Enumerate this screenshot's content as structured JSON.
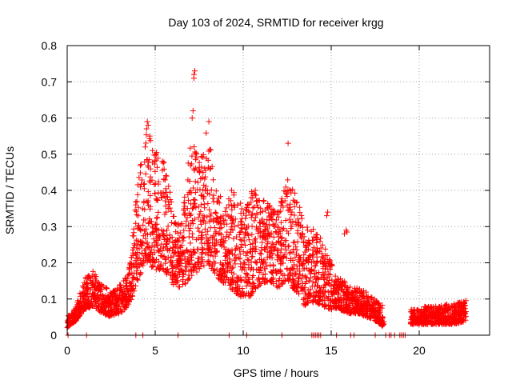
{
  "chart_data": {
    "type": "scatter",
    "title": "Day 103 of 2024, SRMTID for receiver krgg",
    "xlabel": "GPS time / hours",
    "ylabel": "SRMTID / TECUs",
    "xlim": [
      0,
      24
    ],
    "ylim": [
      0,
      0.8
    ],
    "xticks": [
      0,
      5,
      10,
      15,
      20
    ],
    "yticks": [
      0,
      0.1,
      0.2,
      0.3,
      0.4,
      0.5,
      0.6,
      0.7,
      0.8
    ],
    "grid": true,
    "marker": "plus",
    "series": [
      {
        "name": "SRMTID",
        "color": "#ff0000",
        "envelope": [
          {
            "x": 0.0,
            "lo": 0.02,
            "hi": 0.05
          },
          {
            "x": 0.5,
            "lo": 0.04,
            "hi": 0.08
          },
          {
            "x": 1.0,
            "lo": 0.07,
            "hi": 0.16
          },
          {
            "x": 1.5,
            "lo": 0.08,
            "hi": 0.18
          },
          {
            "x": 2.0,
            "lo": 0.06,
            "hi": 0.14
          },
          {
            "x": 2.5,
            "lo": 0.05,
            "hi": 0.12
          },
          {
            "x": 3.0,
            "lo": 0.06,
            "hi": 0.14
          },
          {
            "x": 3.5,
            "lo": 0.08,
            "hi": 0.18
          },
          {
            "x": 4.0,
            "lo": 0.15,
            "hi": 0.42
          },
          {
            "x": 4.5,
            "lo": 0.2,
            "hi": 0.58
          },
          {
            "x": 5.0,
            "lo": 0.18,
            "hi": 0.52
          },
          {
            "x": 5.5,
            "lo": 0.18,
            "hi": 0.48
          },
          {
            "x": 6.0,
            "lo": 0.14,
            "hi": 0.36
          },
          {
            "x": 6.5,
            "lo": 0.13,
            "hi": 0.3
          },
          {
            "x": 7.0,
            "lo": 0.16,
            "hi": 0.55
          },
          {
            "x": 7.5,
            "lo": 0.18,
            "hi": 0.48
          },
          {
            "x": 8.0,
            "lo": 0.2,
            "hi": 0.59
          },
          {
            "x": 8.5,
            "lo": 0.16,
            "hi": 0.4
          },
          {
            "x": 9.0,
            "lo": 0.14,
            "hi": 0.36
          },
          {
            "x": 9.5,
            "lo": 0.12,
            "hi": 0.42
          },
          {
            "x": 10.0,
            "lo": 0.1,
            "hi": 0.34
          },
          {
            "x": 10.5,
            "lo": 0.11,
            "hi": 0.42
          },
          {
            "x": 11.0,
            "lo": 0.14,
            "hi": 0.38
          },
          {
            "x": 11.5,
            "lo": 0.15,
            "hi": 0.36
          },
          {
            "x": 12.0,
            "lo": 0.13,
            "hi": 0.34
          },
          {
            "x": 12.5,
            "lo": 0.15,
            "hi": 0.44
          },
          {
            "x": 13.0,
            "lo": 0.12,
            "hi": 0.4
          },
          {
            "x": 13.5,
            "lo": 0.08,
            "hi": 0.3
          },
          {
            "x": 14.0,
            "lo": 0.09,
            "hi": 0.3
          },
          {
            "x": 14.5,
            "lo": 0.08,
            "hi": 0.26
          },
          {
            "x": 15.0,
            "lo": 0.07,
            "hi": 0.2
          },
          {
            "x": 15.5,
            "lo": 0.07,
            "hi": 0.16
          },
          {
            "x": 16.0,
            "lo": 0.06,
            "hi": 0.14
          },
          {
            "x": 16.5,
            "lo": 0.06,
            "hi": 0.13
          },
          {
            "x": 17.0,
            "lo": 0.05,
            "hi": 0.12
          },
          {
            "x": 17.5,
            "lo": 0.04,
            "hi": 0.1
          },
          {
            "x": 18.0,
            "lo": 0.02,
            "hi": 0.08
          },
          {
            "x": 19.5,
            "lo": 0.03,
            "hi": 0.07
          },
          {
            "x": 20.0,
            "lo": 0.03,
            "hi": 0.08
          },
          {
            "x": 21.0,
            "lo": 0.03,
            "hi": 0.08
          },
          {
            "x": 22.0,
            "lo": 0.03,
            "hi": 0.09
          },
          {
            "x": 22.7,
            "lo": 0.04,
            "hi": 0.1
          }
        ],
        "outliers": [
          {
            "x": 7.2,
            "y": 0.72
          },
          {
            "x": 7.25,
            "y": 0.73
          },
          {
            "x": 7.2,
            "y": 0.71
          },
          {
            "x": 7.15,
            "y": 0.62
          },
          {
            "x": 7.1,
            "y": 0.6
          },
          {
            "x": 4.55,
            "y": 0.59
          },
          {
            "x": 4.6,
            "y": 0.58
          },
          {
            "x": 8.05,
            "y": 0.59
          },
          {
            "x": 12.55,
            "y": 0.53
          },
          {
            "x": 15.85,
            "y": 0.29
          },
          {
            "x": 15.75,
            "y": 0.28
          },
          {
            "x": 15.9,
            "y": 0.285
          },
          {
            "x": 14.8,
            "y": 0.34
          },
          {
            "x": 14.75,
            "y": 0.33
          }
        ],
        "zero_points_x": [
          0.05,
          1.1,
          3.9,
          4.3,
          6.3,
          9.2,
          10.2,
          12.2,
          13.9,
          14.0,
          14.1,
          14.2,
          14.3,
          14.4,
          15.3,
          16.1,
          16.3,
          17.5,
          18.1,
          18.3,
          18.4,
          18.6,
          18.9,
          19.0,
          19.1,
          19.2
        ]
      }
    ]
  }
}
